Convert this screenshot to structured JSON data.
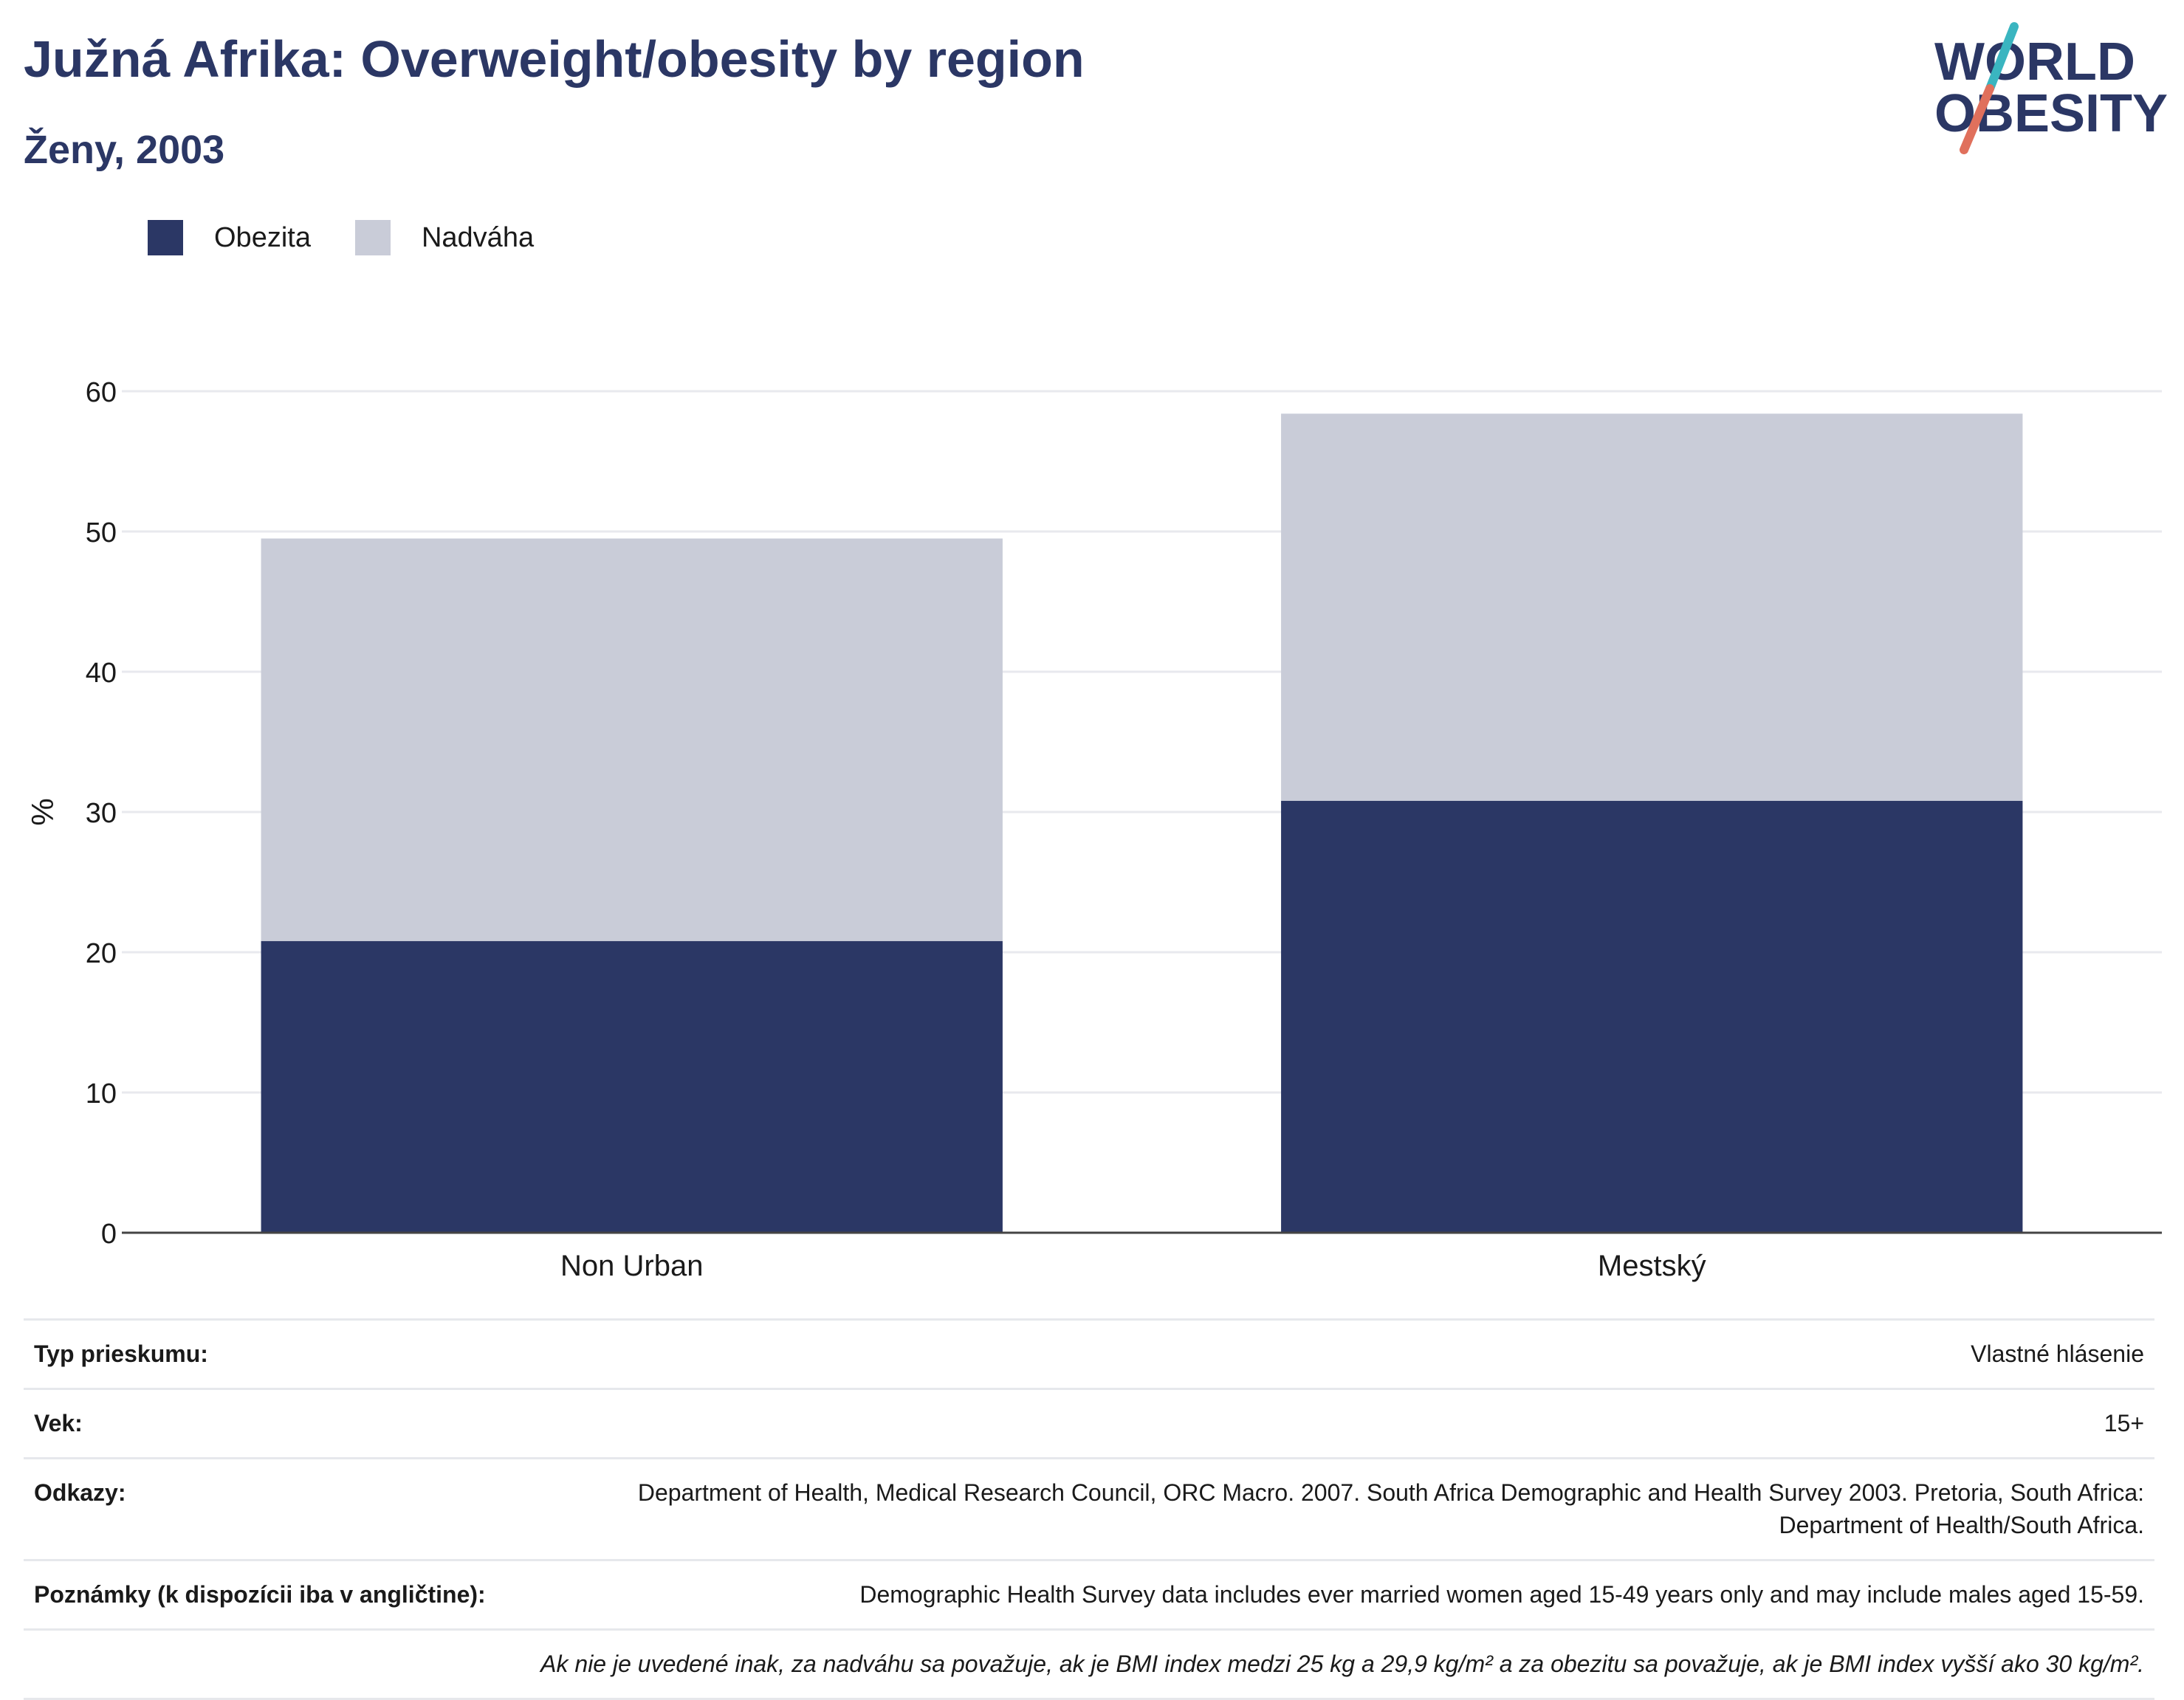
{
  "header": {
    "title": "Južná Afrika: Overweight/obesity by region",
    "subtitle": "Ženy, 2003"
  },
  "logo": {
    "line1": "WORLD",
    "line2": "OBESITY",
    "accent_teal": "#3ab5c0",
    "accent_red": "#e0705c"
  },
  "colors": {
    "obesity": "#2b3765",
    "overweight": "#c9ccd8",
    "text": "#2b3765"
  },
  "legend": [
    {
      "label": "Obezita",
      "color": "#2b3765"
    },
    {
      "label": "Nadváha",
      "color": "#c9ccd8"
    }
  ],
  "chart_data": {
    "type": "bar",
    "stacked": true,
    "categories": [
      "Non Urban",
      "Mestský"
    ],
    "series": [
      {
        "name": "Obezita",
        "values": [
          20.8,
          30.8
        ],
        "color": "#2b3765"
      },
      {
        "name": "Nadváha",
        "values": [
          28.7,
          27.6
        ],
        "color": "#c9ccd8"
      }
    ],
    "ylabel": "%",
    "ylim": [
      0,
      60
    ],
    "yticks": [
      0,
      10,
      20,
      30,
      40,
      50,
      60
    ],
    "grid": true,
    "legend_position": "top-left"
  },
  "info": {
    "rows": [
      {
        "label": "Typ prieskumu:",
        "value": "Vlastné hlásenie"
      },
      {
        "label": "Vek:",
        "value": "15+"
      },
      {
        "label": "Odkazy:",
        "value": "Department of Health, Medical Research Council, ORC Macro. 2007. South Africa Demographic and Health Survey 2003. Pretoria, South Africa: Department of Health/South Africa."
      },
      {
        "label": "Poznámky (k dispozícii iba v angličtine):",
        "value": "Demographic Health Survey data includes ever married women aged 15-49 years only and may include males aged 15-59."
      }
    ],
    "footnote": "Ak nie je uvedené inak, za nadváhu sa považuje, ak je BMI index medzi 25 kg a 29,9 kg/m² a za obezitu sa považuje, ak je BMI index vyšší ako 30 kg/m²."
  }
}
